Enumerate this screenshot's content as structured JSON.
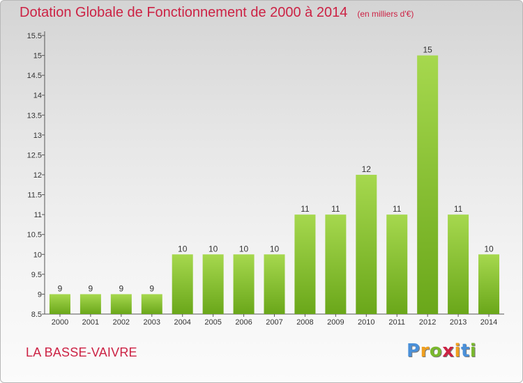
{
  "title": "Dotation Globale de Fonctionnement de 2000 à 2014",
  "unit_label": "(en milliers d'€)",
  "commune": "LA BASSE-VAIVRE",
  "logo": {
    "letters": [
      "P",
      "r",
      "o",
      "x",
      "i",
      "t",
      "i"
    ],
    "colors": [
      "#4a90d9",
      "#f0a020",
      "#7ab82e",
      "#cc2244",
      "#f0a020",
      "#4a90d9",
      "#7ab82e"
    ]
  },
  "colors": {
    "title": "#cc2244",
    "bar_light": "#a6d84e",
    "bar_dark": "#6aa71a"
  },
  "chart_data": {
    "type": "bar",
    "title": "Dotation Globale de Fonctionnement de 2000 à 2014",
    "categories": [
      "2000",
      "2001",
      "2002",
      "2003",
      "2004",
      "2005",
      "2006",
      "2007",
      "2008",
      "2009",
      "2010",
      "2011",
      "2012",
      "2013",
      "2014"
    ],
    "values": [
      9,
      9,
      9,
      9,
      10,
      10,
      10,
      10,
      11,
      11,
      12,
      11,
      15,
      11,
      10
    ],
    "value_labels": [
      "9",
      "9",
      "9",
      "9",
      "10",
      "10",
      "10",
      "10",
      "11",
      "11",
      "12",
      "11",
      "15",
      "11",
      "10"
    ],
    "ylim": [
      8.5,
      15.5
    ],
    "yticks": [
      8.5,
      9,
      9.5,
      10,
      10.5,
      11,
      11.5,
      12,
      12.5,
      13,
      13.5,
      14,
      14.5,
      15,
      15.5
    ],
    "ytick_labels": [
      "8.5",
      "9",
      "9.5",
      "10",
      "10.5",
      "11",
      "11.5",
      "12",
      "12.5",
      "13",
      "13.5",
      "14",
      "14.5",
      "15",
      "15.5"
    ],
    "grid": false,
    "legend": "none"
  }
}
